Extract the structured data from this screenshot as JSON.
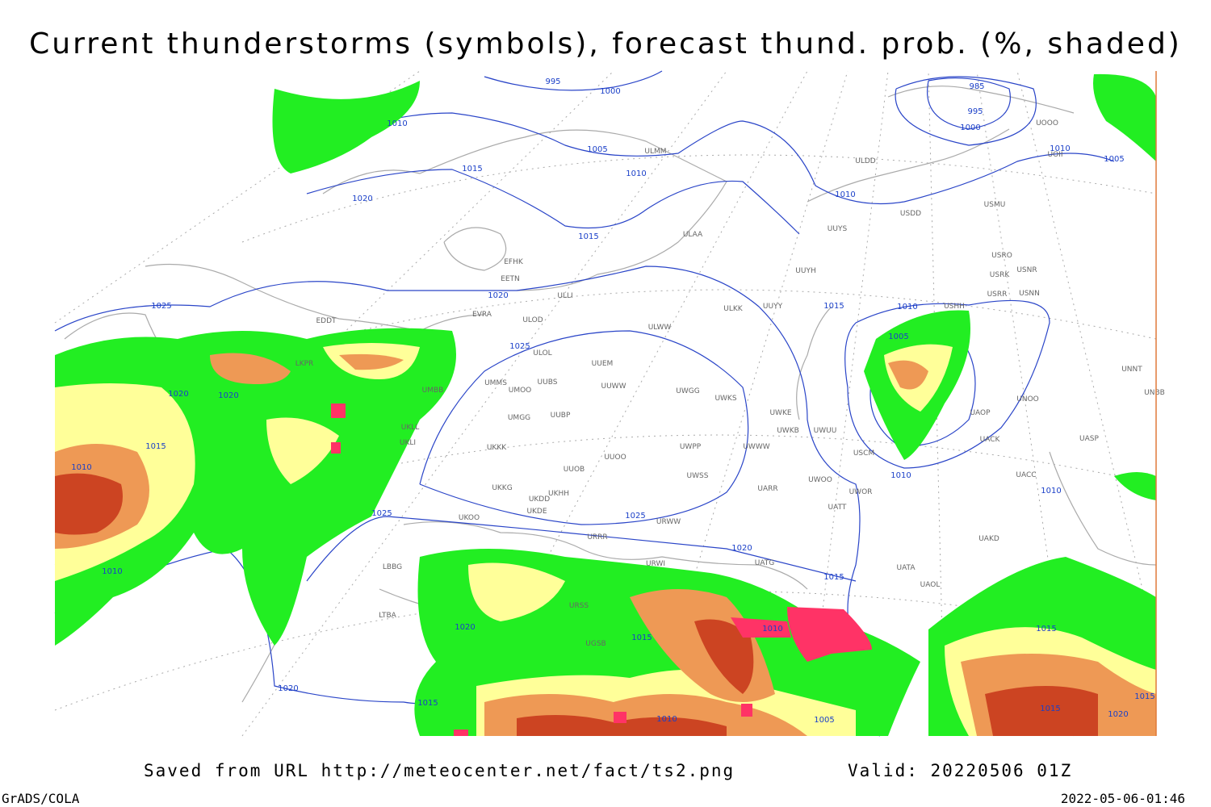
{
  "header": {
    "title": "Current thunderstorms (symbols), forecast thund. prob. (%, shaded)"
  },
  "footer": {
    "source": "Saved from URL http://meteocenter.net/fact/ts2.png",
    "valid": "Valid: 20220506 01Z",
    "credit": "GrADS/COLA",
    "timestamp": "2022-05-06-01:46"
  },
  "map": {
    "isobar_labels": [
      995,
      1000,
      1010,
      1005,
      1015,
      1010,
      1020,
      1015,
      1010,
      985,
      995,
      1000,
      1010,
      1005,
      1025,
      1020,
      1015,
      1010,
      1005,
      1025,
      1020,
      1020,
      1015,
      1010,
      1025,
      1025,
      1010,
      1010,
      1020,
      1015,
      1010,
      1020,
      1015,
      1010,
      1015,
      1020,
      1015,
      1015,
      1015,
      1010,
      1005,
      1020
    ],
    "stations": [
      "ULDD",
      "USMU",
      "UUYS",
      "ULAA",
      "USRO",
      "USRK",
      "USNR",
      "UUYH",
      "USRR",
      "USNN",
      "UUYY",
      "ULKK",
      "ULWW",
      "ULOD",
      "ULOL",
      "UUEM",
      "UMMS",
      "UMOO",
      "UUBS",
      "UUWW",
      "UWGG",
      "UWKS",
      "UMBB",
      "UMGG",
      "UUBP",
      "UWKE",
      "UWKB",
      "UWUU",
      "UKKK",
      "UUOO",
      "UWPP",
      "UWWW",
      "UUOB",
      "UWSS",
      "UARR",
      "UWOO",
      "UWOR",
      "ULLI",
      "EETN",
      "EFHK",
      "EVRA",
      "EDDT",
      "LKPR",
      "UKLL",
      "UKLI",
      "UKKG",
      "UKDD",
      "UKHH",
      "UKOO",
      "UKDE",
      "URWW",
      "URRR",
      "URWI",
      "UATT",
      "UAKD",
      "UATA",
      "UAOL",
      "UATG",
      "USCM",
      "UACK",
      "UAOP",
      "UASP",
      "UACC",
      "UNOO",
      "UNNT",
      "UNBB",
      "LBBG",
      "ULMM",
      "USDD",
      "UOOO",
      "UOII",
      "USHH",
      "LTBA",
      "URSS",
      "UGSB"
    ]
  }
}
